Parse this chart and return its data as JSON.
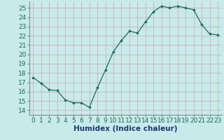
{
  "x": [
    0,
    1,
    2,
    3,
    4,
    5,
    6,
    7,
    8,
    9,
    10,
    11,
    12,
    13,
    14,
    15,
    16,
    17,
    18,
    19,
    20,
    21,
    22,
    23
  ],
  "y": [
    17.5,
    16.9,
    16.2,
    16.1,
    15.1,
    14.8,
    14.8,
    14.3,
    16.4,
    18.3,
    20.3,
    21.5,
    22.5,
    22.3,
    23.5,
    24.6,
    25.2,
    25.0,
    25.2,
    25.0,
    24.8,
    23.2,
    22.2,
    22.1
  ],
  "line_color": "#1a6b5e",
  "marker": "D",
  "marker_size": 1.8,
  "bg_color": "#c8eaea",
  "grid_color": "#c8a8a8",
  "xlabel": "Humidex (Indice chaleur)",
  "xlim": [
    -0.5,
    23.5
  ],
  "ylim": [
    13.5,
    25.7
  ],
  "ytick_values": [
    14,
    15,
    16,
    17,
    18,
    19,
    20,
    21,
    22,
    23,
    24,
    25
  ],
  "tick_fontsize": 6.5,
  "label_fontsize": 7.5,
  "label_color": "#1a3a6e",
  "tick_color": "#1a6b5e"
}
